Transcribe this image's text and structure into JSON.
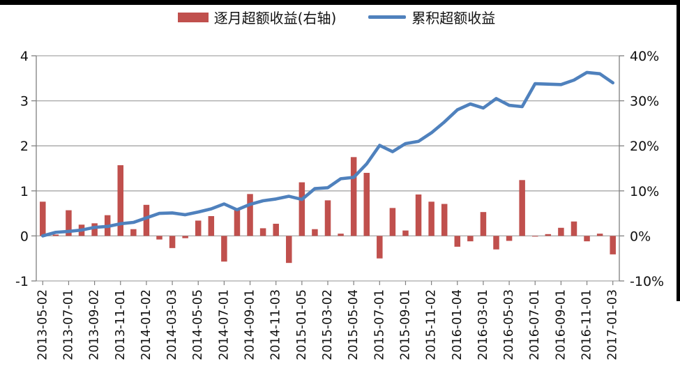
{
  "legend": [
    {
      "label": "逐月超额收益(右轴)",
      "type": "bar",
      "color": "#C0504D"
    },
    {
      "label": "累积超额收益",
      "type": "line",
      "color": "#4F81BD"
    }
  ],
  "colors": {
    "bar": "#C0504D",
    "line": "#4F81BD",
    "gridline": "#A6A6A6",
    "axis": "#808080",
    "text": "#111111",
    "frame_border": "#000000"
  },
  "chart_data": {
    "type": "combo",
    "title": "",
    "grid": true,
    "legend_position": "top",
    "categories": [
      "2013-05",
      "2013-06",
      "2013-07",
      "2013-08",
      "2013-09",
      "2013-10",
      "2013-11",
      "2013-12",
      "2014-01",
      "2014-02",
      "2014-03",
      "2014-04",
      "2014-05",
      "2014-06",
      "2014-07",
      "2014-08",
      "2014-09",
      "2014-10",
      "2014-11",
      "2014-12",
      "2015-01",
      "2015-02",
      "2015-03",
      "2015-04",
      "2015-05",
      "2015-06",
      "2015-07",
      "2015-08",
      "2015-09",
      "2015-10",
      "2015-11",
      "2015-12",
      "2016-01",
      "2016-02",
      "2016-03",
      "2016-04",
      "2016-05",
      "2016-06",
      "2016-07",
      "2016-08",
      "2016-09",
      "2016-10",
      "2016-11",
      "2016-12",
      "2017-01"
    ],
    "x_tick_labels": [
      "2013-05-02",
      "2013-07-01",
      "2013-09-02",
      "2013-11-01",
      "2014-01-02",
      "2014-03-03",
      "2014-05-05",
      "2014-07-01",
      "2014-09-01",
      "2014-11-03",
      "2015-01-05",
      "2015-03-02",
      "2015-05-04",
      "2015-07-01",
      "2015-09-01",
      "2015-11-02",
      "2016-01-04",
      "2016-03-01",
      "2016-05-03",
      "2016-07-01",
      "2016-09-01",
      "2016-11-01",
      "2017-01-03"
    ],
    "series": [
      {
        "name": "逐月超额收益(右轴)",
        "type": "bar",
        "axis": "right",
        "unit": "%",
        "color": "#C0504D",
        "values": [
          7.6,
          0.3,
          5.7,
          2.5,
          2.8,
          4.6,
          15.7,
          1.5,
          6.9,
          -0.8,
          -2.7,
          -0.5,
          3.4,
          4.4,
          -5.7,
          5.8,
          9.3,
          1.7,
          2.7,
          -6.0,
          11.9,
          1.5,
          7.9,
          0.5,
          17.5,
          14.0,
          -5.0,
          6.2,
          1.2,
          9.2,
          7.6,
          7.1,
          -2.4,
          -1.2,
          5.3,
          -3.0,
          -1.1,
          12.4,
          0.0,
          0.4,
          1.8,
          3.2,
          -1.2,
          0.5,
          -4.1
        ]
      },
      {
        "name": "累积超额收益",
        "type": "line",
        "axis": "left",
        "color": "#4F81BD",
        "values": [
          0.0,
          0.08,
          0.1,
          0.13,
          0.19,
          0.21,
          0.27,
          0.3,
          0.4,
          0.5,
          0.51,
          0.47,
          0.53,
          0.6,
          0.71,
          0.58,
          0.7,
          0.78,
          0.82,
          0.88,
          0.81,
          1.05,
          1.07,
          1.27,
          1.3,
          1.6,
          2.01,
          1.87,
          2.05,
          2.1,
          2.29,
          2.53,
          2.8,
          2.93,
          2.84,
          3.05,
          2.9,
          2.87,
          3.38,
          3.37,
          3.36,
          3.46,
          3.63,
          3.6,
          3.4
        ]
      }
    ],
    "left_axis": {
      "ticks": [
        "4",
        "3",
        "2",
        "1",
        "0",
        "-1"
      ],
      "min": -1,
      "max": 4
    },
    "right_axis": {
      "ticks": [
        "40%",
        "30%",
        "20%",
        "10%",
        "0%",
        "-10%"
      ],
      "min": -10,
      "max": 40,
      "note": "10% right = 1.0 left"
    }
  }
}
